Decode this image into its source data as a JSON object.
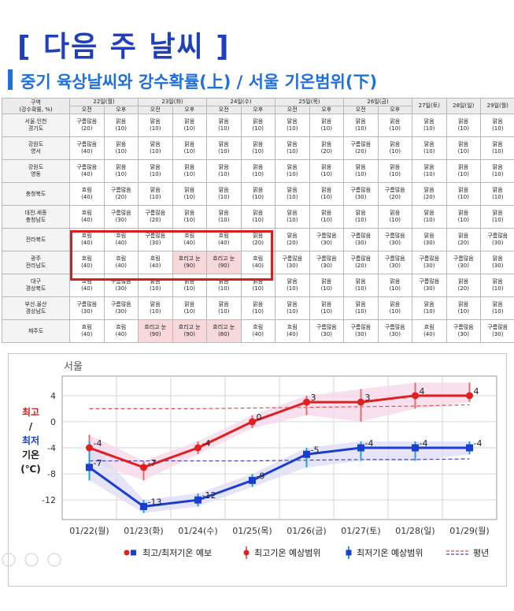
{
  "header": {
    "title": "[ 다음 주 날씨 ]",
    "subtitle": "중기 육상날씨와 강수확률(上)  / 서울 기온범위(下)"
  },
  "table": {
    "corner": [
      "구역",
      "(강수확률, %)"
    ],
    "days": [
      "22일(월)",
      "23일(화)",
      "24일(수)",
      "25일(목)",
      "26일(금)",
      "27일(토)",
      "28일(일)",
      "29일(월)"
    ],
    "ampm": [
      "오전",
      "오후"
    ],
    "rows": [
      {
        "region": [
          "서울.인천",
          "경기도"
        ],
        "cells": [
          [
            "구름많음",
            "(20)"
          ],
          [
            "맑음",
            "(10)"
          ],
          [
            "맑음",
            "(10)"
          ],
          [
            "맑음",
            "(10)"
          ],
          [
            "맑음",
            "(10)"
          ],
          [
            "맑음",
            "(10)"
          ],
          [
            "맑음",
            "(10)"
          ],
          [
            "맑음",
            "(10)"
          ],
          [
            "맑음",
            "(10)"
          ],
          [
            "맑음",
            "(10)"
          ],
          [
            "맑음",
            "(10)"
          ],
          [
            "맑음",
            "(10)"
          ],
          [
            "맑음",
            "(10)"
          ]
        ]
      },
      {
        "region": [
          "강원도",
          "영서"
        ],
        "cells": [
          [
            "구름많음",
            "(40)"
          ],
          [
            "맑음",
            "(10)"
          ],
          [
            "맑음",
            "(10)"
          ],
          [
            "맑음",
            "(10)"
          ],
          [
            "맑음",
            "(10)"
          ],
          [
            "맑음",
            "(10)"
          ],
          [
            "맑음",
            "(10)"
          ],
          [
            "맑음",
            "(20)"
          ],
          [
            "구름많음",
            "(20)"
          ],
          [
            "맑음",
            "(10)"
          ],
          [
            "맑음",
            "(10)"
          ],
          [
            "맑음",
            "(10)"
          ],
          [
            "맑음",
            "(10)"
          ]
        ]
      },
      {
        "region": [
          "강원도",
          "영동"
        ],
        "cells": [
          [
            "구름많음",
            "(40)"
          ],
          [
            "맑음",
            "(10)"
          ],
          [
            "맑음",
            "(10)"
          ],
          [
            "맑음",
            "(10)"
          ],
          [
            "맑음",
            "(10)"
          ],
          [
            "맑음",
            "(10)"
          ],
          [
            "맑음",
            "(10)"
          ],
          [
            "맑음",
            "(10)"
          ],
          [
            "맑음",
            "(10)"
          ],
          [
            "맑음",
            "(10)"
          ],
          [
            "맑음",
            "(10)"
          ],
          [
            "맑음",
            "(10)"
          ],
          [
            "맑음",
            "(10)"
          ]
        ]
      },
      {
        "region": [
          "충청북도"
        ],
        "cells": [
          [
            "흐림",
            "(40)"
          ],
          [
            "구름많음",
            "(20)"
          ],
          [
            "맑음",
            "(10)"
          ],
          [
            "맑음",
            "(10)"
          ],
          [
            "맑음",
            "(10)"
          ],
          [
            "맑음",
            "(10)"
          ],
          [
            "맑음",
            "(10)"
          ],
          [
            "맑음",
            "(10)"
          ],
          [
            "구름많음",
            "(30)"
          ],
          [
            "구름많음",
            "(20)"
          ],
          [
            "맑음",
            "(20)"
          ],
          [
            "맑음",
            "(10)"
          ],
          [
            "맑음",
            "(10)"
          ]
        ]
      },
      {
        "region": [
          "대전.세종",
          "충청남도"
        ],
        "cells": [
          [
            "흐림",
            "(40)"
          ],
          [
            "구름많음",
            "(30)"
          ],
          [
            "구름많음",
            "(20)"
          ],
          [
            "맑음",
            "(10)"
          ],
          [
            "맑음",
            "(10)"
          ],
          [
            "맑음",
            "(10)"
          ],
          [
            "맑음",
            "(10)"
          ],
          [
            "맑음",
            "(10)"
          ],
          [
            "맑음",
            "(10)"
          ],
          [
            "맑음",
            "(10)"
          ],
          [
            "맑음",
            "(10)"
          ],
          [
            "맑음",
            "(10)"
          ],
          [
            "맑음",
            "(10)"
          ]
        ]
      },
      {
        "region": [
          "전라북도"
        ],
        "cells": [
          [
            "흐림",
            "(40)"
          ],
          [
            "흐림",
            "(40)"
          ],
          [
            "구름많음",
            "(30)"
          ],
          [
            "흐림",
            "(40)"
          ],
          [
            "흐림",
            "(40)"
          ],
          [
            "맑음",
            "(20)"
          ],
          [
            "맑음",
            "(20)"
          ],
          [
            "구름많음",
            "(30)"
          ],
          [
            "구름많음",
            "(30)"
          ],
          [
            "구름많음",
            "(30)"
          ],
          [
            "맑음",
            "(30)"
          ],
          [
            "맑음",
            "(20)"
          ],
          [
            "구름많음",
            "(30)"
          ]
        ]
      },
      {
        "region": [
          "광주",
          "전라남도"
        ],
        "cells": [
          [
            "흐림",
            "(40)"
          ],
          [
            "흐림",
            "(40)"
          ],
          [
            "흐림",
            "(40)"
          ],
          [
            "흐리고 눈",
            "(90)"
          ],
          [
            "흐리고 눈",
            "(90)"
          ],
          [
            "흐림",
            "(40)"
          ],
          [
            "구름많음",
            "(30)"
          ],
          [
            "구름많음",
            "(30)"
          ],
          [
            "구름많음",
            "(20)"
          ],
          [
            "구름많음",
            "(30)"
          ],
          [
            "구름많음",
            "(30)"
          ],
          [
            "구름많음",
            "(30)"
          ],
          [
            "맑음",
            "(30)"
          ]
        ]
      },
      {
        "region": [
          "대구",
          "경상북도"
        ],
        "cells": [
          [
            "흐림",
            "(40)"
          ],
          [
            "구름많음",
            "(30)"
          ],
          [
            "맑음",
            "(10)"
          ],
          [
            "맑음",
            "(10)"
          ],
          [
            "맑음",
            "(10)"
          ],
          [
            "맑음",
            "(10)"
          ],
          [
            "맑음",
            "(10)"
          ],
          [
            "맑음",
            "(10)"
          ],
          [
            "맑음",
            "(10)"
          ],
          [
            "맑음",
            "(10)"
          ],
          [
            "구름많음",
            "(30)"
          ],
          [
            "맑음",
            "(20)"
          ],
          [
            "맑음",
            "(10)"
          ]
        ]
      },
      {
        "region": [
          "부산.울산",
          "경상남도"
        ],
        "cells": [
          [
            "구름많음",
            "(30)"
          ],
          [
            "구름많음",
            "(30)"
          ],
          [
            "맑음",
            "(10)"
          ],
          [
            "맑음",
            "(10)"
          ],
          [
            "맑음",
            "(10)"
          ],
          [
            "맑음",
            "(10)"
          ],
          [
            "맑음",
            "(10)"
          ],
          [
            "맑음",
            "(10)"
          ],
          [
            "맑음",
            "(10)"
          ],
          [
            "맑음",
            "(10)"
          ],
          [
            "맑음",
            "(10)"
          ],
          [
            "맑음",
            "(10)"
          ],
          [
            "맑음",
            "(10)"
          ]
        ]
      },
      {
        "region": [
          "제주도"
        ],
        "cells": [
          [
            "흐림",
            "(40)"
          ],
          [
            "흐림",
            "(40)"
          ],
          [
            "흐리고 눈",
            "(90)"
          ],
          [
            "흐리고 눈",
            "(90)"
          ],
          [
            "흐리고 눈",
            "(80)"
          ],
          [
            "흐림",
            "(40)"
          ],
          [
            "흐림",
            "(40)"
          ],
          [
            "구름많음",
            "(30)"
          ],
          [
            "구름많음",
            "(30)"
          ],
          [
            "구름많음",
            "(30)"
          ],
          [
            "흐림",
            "(40)"
          ],
          [
            "구름많음",
            "(30)"
          ],
          [
            "구름많음",
            "(30)"
          ]
        ]
      }
    ]
  },
  "chart_data": {
    "type": "line",
    "title": "서울",
    "ylabel_lines": [
      "최고",
      "/",
      "최저",
      "기온",
      "(℃)"
    ],
    "categories": [
      "01/22(월)",
      "01/23(화)",
      "01/24(수)",
      "01/25(목)",
      "01/26(금)",
      "01/27(토)",
      "01/28(일)",
      "01/29(월)"
    ],
    "yticks": [
      4,
      0,
      -4,
      -8,
      -12
    ],
    "ylim": [
      -15,
      7
    ],
    "grid": true,
    "series": [
      {
        "role": "max",
        "color": "#e02020",
        "values": [
          -4,
          -7,
          -4,
          0,
          3,
          3,
          4,
          4
        ],
        "range_low": [
          -6,
          -9,
          -5,
          -1,
          1,
          0,
          2,
          3
        ],
        "range_high": [
          -2,
          -6,
          -3,
          1,
          4,
          5,
          6,
          6
        ]
      },
      {
        "role": "min",
        "color": "#1a3fd0",
        "values": [
          -7,
          -13,
          -12,
          -9,
          -5,
          -4,
          -4,
          -4
        ],
        "range_low": [
          -9,
          -14,
          -13,
          -10,
          -7,
          -6,
          -6,
          -5
        ],
        "range_high": [
          -3,
          -12,
          -11,
          -8,
          -4,
          -3,
          -3,
          -3
        ]
      }
    ],
    "normal_max": [
      2,
      2,
      2,
      2.1,
      2.2,
      2.3,
      2.4,
      2.6
    ],
    "normal_min": [
      -6,
      -6,
      -6,
      -6,
      -5.9,
      -5.8,
      -5.8,
      -5.7
    ],
    "legend": [
      "최고/최저기온 예보",
      "최고기온 예상범위",
      "최저기온 예상범위",
      "평년"
    ],
    "legend_placement": "bottom"
  }
}
